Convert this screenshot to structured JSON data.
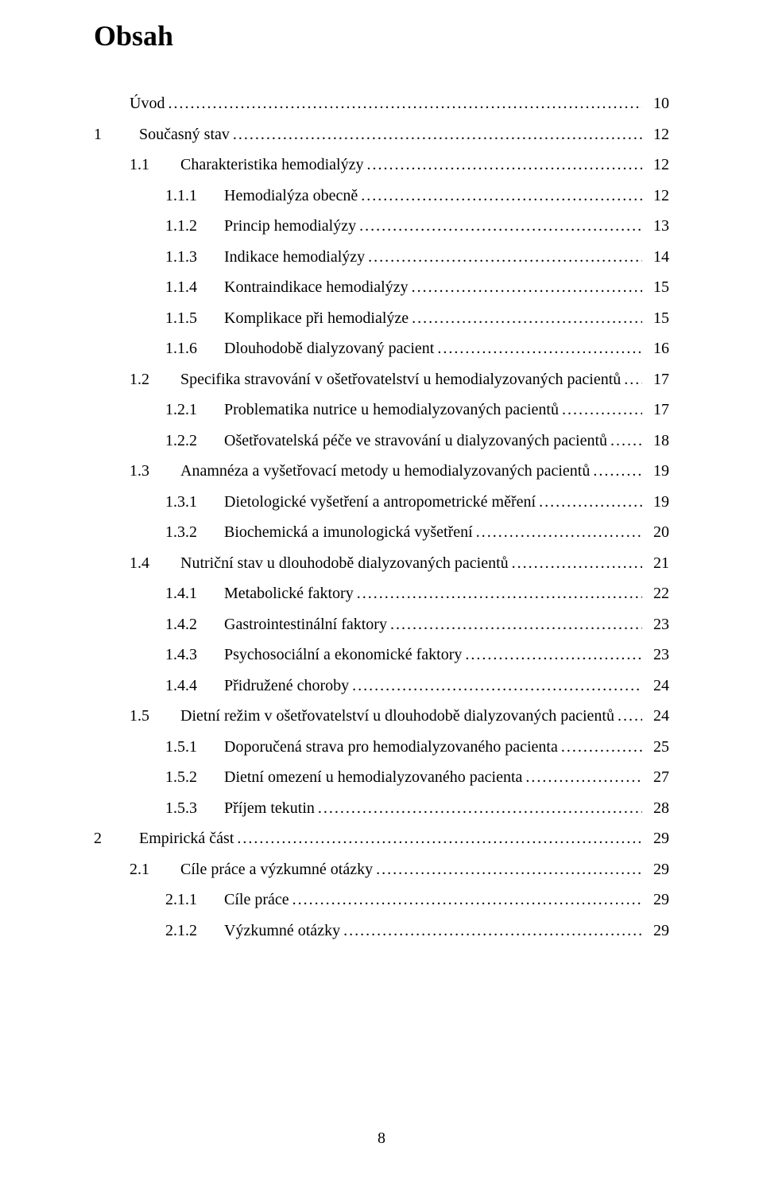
{
  "document": {
    "title": "Obsah",
    "page_number": "8",
    "font_family": "Times New Roman",
    "title_fontsize": 36,
    "body_fontsize": 20,
    "text_color": "#000000",
    "background_color": "#ffffff"
  },
  "toc": [
    {
      "level": 0,
      "num": "",
      "label": "Úvod",
      "page": "10"
    },
    {
      "level": 1,
      "num": "1",
      "label": "Současný stav",
      "page": "12"
    },
    {
      "level": 2,
      "num": "1.1",
      "label": "Charakteristika hemodialýzy",
      "page": "12"
    },
    {
      "level": 3,
      "num": "1.1.1",
      "label": "Hemodialýza obecně",
      "page": "12"
    },
    {
      "level": 3,
      "num": "1.1.2",
      "label": "Princip hemodialýzy",
      "page": "13"
    },
    {
      "level": 3,
      "num": "1.1.3",
      "label": "Indikace hemodialýzy",
      "page": "14"
    },
    {
      "level": 3,
      "num": "1.1.4",
      "label": "Kontraindikace hemodialýzy",
      "page": "15"
    },
    {
      "level": 3,
      "num": "1.1.5",
      "label": "Komplikace při hemodialýze",
      "page": "15"
    },
    {
      "level": 3,
      "num": "1.1.6",
      "label": "Dlouhodobě dialyzovaný pacient",
      "page": "16"
    },
    {
      "level": 2,
      "num": "1.2",
      "label": "Specifika stravování v ošetřovatelství u hemodialyzovaných pacientů",
      "page": "17"
    },
    {
      "level": 3,
      "num": "1.2.1",
      "label": "Problematika nutrice u hemodialyzovaných pacientů",
      "page": "17"
    },
    {
      "level": 3,
      "num": "1.2.2",
      "label": "Ošetřovatelská péče ve stravování u dialyzovaných pacientů",
      "page": "18"
    },
    {
      "level": 2,
      "num": "1.3",
      "label": "Anamnéza a vyšetřovací metody u hemodialyzovaných pacientů",
      "page": "19"
    },
    {
      "level": 3,
      "num": "1.3.1",
      "label": "Dietologické vyšetření a antropometrické měření",
      "page": "19"
    },
    {
      "level": 3,
      "num": "1.3.2",
      "label": "Biochemická a imunologická vyšetření",
      "page": "20"
    },
    {
      "level": 2,
      "num": "1.4",
      "label": "Nutriční stav u dlouhodobě dialyzovaných pacientů",
      "page": "21"
    },
    {
      "level": 3,
      "num": "1.4.1",
      "label": "Metabolické faktory",
      "page": "22"
    },
    {
      "level": 3,
      "num": "1.4.2",
      "label": "Gastrointestinální faktory",
      "page": "23"
    },
    {
      "level": 3,
      "num": "1.4.3",
      "label": "Psychosociální a ekonomické faktory",
      "page": "23"
    },
    {
      "level": 3,
      "num": "1.4.4",
      "label": "Přidružené choroby",
      "page": "24"
    },
    {
      "level": 2,
      "num": "1.5",
      "label": "Dietní režim v ošetřovatelství u dlouhodobě dialyzovaných pacientů",
      "page": "24"
    },
    {
      "level": 3,
      "num": "1.5.1",
      "label": "Doporučená strava pro hemodialyzovaného pacienta",
      "page": "25"
    },
    {
      "level": 3,
      "num": "1.5.2",
      "label": "Dietní omezení u hemodialyzovaného pacienta",
      "page": "27"
    },
    {
      "level": 3,
      "num": "1.5.3",
      "label": "Příjem tekutin",
      "page": "28"
    },
    {
      "level": 1,
      "num": "2",
      "label": "Empirická část",
      "page": "29"
    },
    {
      "level": 2,
      "num": "2.1",
      "label": "Cíle práce a výzkumné otázky",
      "page": "29"
    },
    {
      "level": 3,
      "num": "2.1.1",
      "label": "Cíle práce",
      "page": "29"
    },
    {
      "level": 3,
      "num": "2.1.2",
      "label": "Výzkumné otázky",
      "page": "29"
    }
  ]
}
